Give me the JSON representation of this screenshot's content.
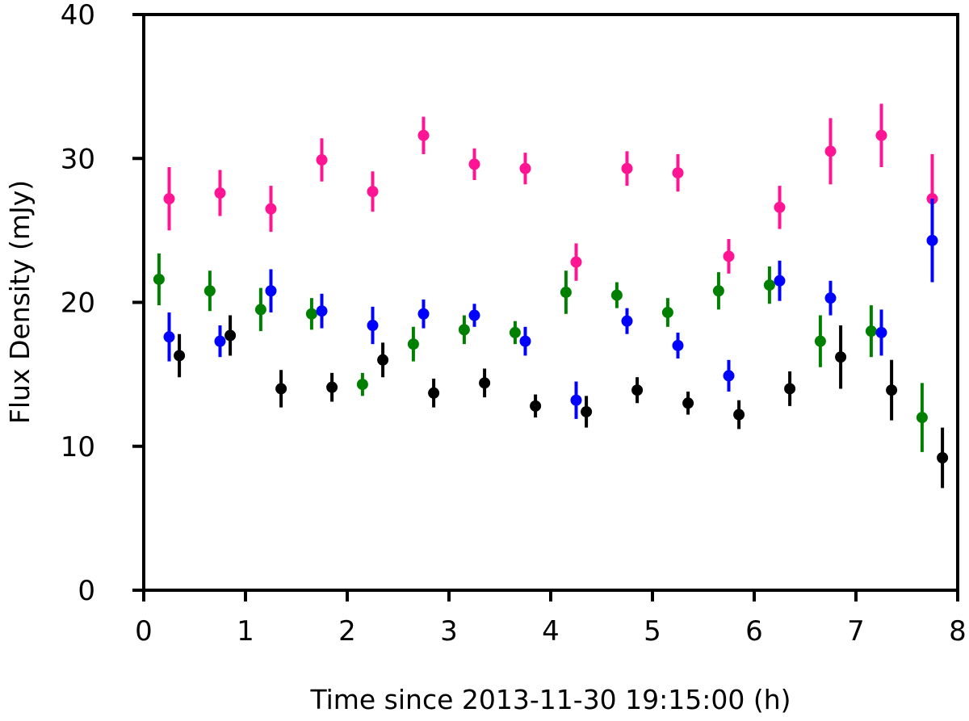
{
  "chart_data": {
    "type": "scatter",
    "xlabel": "Time since 2013-11-30 19:15:00 (h)",
    "ylabel": "Flux Density (mJy)",
    "xlim": [
      0,
      8
    ],
    "ylim": [
      0,
      40
    ],
    "xticks": [
      "0",
      "1",
      "2",
      "3",
      "4",
      "5",
      "6",
      "7",
      "8"
    ],
    "yticks": [
      "0",
      "10",
      "20",
      "30",
      "40"
    ],
    "grid": false,
    "legend": "none",
    "series": [
      {
        "color": "#ff1493",
        "x": [
          0.25,
          0.75,
          1.25,
          1.75,
          2.25,
          2.75,
          3.25,
          3.75,
          4.25,
          4.75,
          5.25,
          5.75,
          6.25,
          6.75,
          7.25,
          7.75
        ],
        "y": [
          27.2,
          27.6,
          26.5,
          29.9,
          27.7,
          31.6,
          29.6,
          29.3,
          22.8,
          29.3,
          29.0,
          23.2,
          26.6,
          30.5,
          31.6,
          27.2
        ],
        "err": [
          2.2,
          1.6,
          1.6,
          1.5,
          1.4,
          1.3,
          1.1,
          1.1,
          1.3,
          1.2,
          1.3,
          1.2,
          1.5,
          2.3,
          2.2,
          3.1
        ]
      },
      {
        "color": "#008000",
        "x": [
          0.15,
          0.65,
          1.15,
          1.65,
          2.15,
          2.65,
          3.15,
          3.65,
          4.15,
          4.65,
          5.15,
          5.65,
          6.15,
          6.65,
          7.15,
          7.65
        ],
        "y": [
          21.6,
          20.8,
          19.5,
          19.2,
          14.3,
          17.1,
          18.1,
          17.9,
          20.7,
          20.5,
          19.3,
          20.8,
          21.2,
          17.3,
          18.0,
          12.0
        ],
        "err": [
          1.8,
          1.4,
          1.5,
          1.1,
          0.8,
          1.2,
          1.0,
          0.8,
          1.5,
          0.9,
          1.0,
          1.3,
          1.3,
          1.8,
          1.8,
          2.4
        ]
      },
      {
        "color": "#0000ff",
        "x": [
          0.25,
          0.75,
          1.25,
          1.75,
          2.25,
          2.75,
          3.25,
          3.75,
          4.25,
          4.75,
          5.25,
          5.75,
          6.25,
          6.75,
          7.25,
          7.75
        ],
        "y": [
          17.6,
          17.3,
          20.8,
          19.4,
          18.4,
          19.2,
          19.1,
          17.3,
          13.2,
          18.7,
          17.0,
          14.9,
          21.5,
          20.3,
          17.9,
          24.3
        ],
        "err": [
          1.7,
          1.1,
          1.5,
          1.2,
          1.3,
          1.0,
          0.8,
          1.0,
          1.3,
          0.9,
          0.9,
          1.1,
          1.4,
          1.2,
          1.6,
          2.9
        ]
      },
      {
        "color": "#000000",
        "x": [
          0.35,
          0.85,
          1.35,
          1.85,
          2.35,
          2.85,
          3.35,
          3.85,
          4.35,
          4.85,
          5.35,
          5.85,
          6.35,
          6.85,
          7.35,
          7.85
        ],
        "y": [
          16.3,
          17.7,
          14.0,
          14.1,
          16.0,
          13.7,
          14.4,
          12.8,
          12.4,
          13.9,
          13.0,
          12.2,
          14.0,
          16.2,
          13.9,
          9.2
        ],
        "err": [
          1.5,
          1.4,
          1.3,
          1.0,
          1.2,
          1.0,
          1.0,
          0.8,
          1.1,
          0.9,
          0.8,
          1.0,
          1.2,
          2.2,
          2.1,
          2.1
        ]
      }
    ]
  }
}
